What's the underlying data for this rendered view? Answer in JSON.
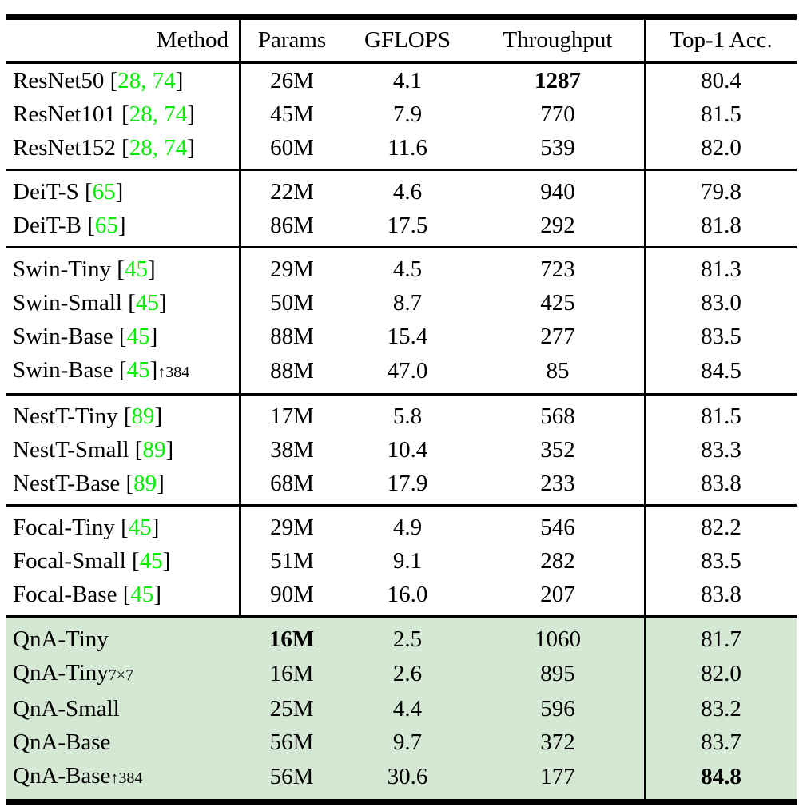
{
  "table": {
    "headers": [
      "Method",
      "Params",
      "GFLOPS",
      "Throughput",
      "Top-1 Acc."
    ],
    "colors": {
      "citation": "#00ee00",
      "highlight_row_bg": "#d5e8d4",
      "rule": "#000000"
    },
    "groups": [
      {
        "highlight": false,
        "rows": [
          {
            "method": "ResNet50",
            "citation": "28, 74",
            "subscript": "",
            "params": "26M",
            "gflops": "4.1",
            "throughput": "1287",
            "top1": "80.4",
            "bold": [
              "throughput"
            ]
          },
          {
            "method": "ResNet101",
            "citation": "28, 74",
            "subscript": "",
            "params": "45M",
            "gflops": "7.9",
            "throughput": "770",
            "top1": "81.5",
            "bold": []
          },
          {
            "method": "ResNet152",
            "citation": "28, 74",
            "subscript": "",
            "params": "60M",
            "gflops": "11.6",
            "throughput": "539",
            "top1": "82.0",
            "bold": []
          }
        ]
      },
      {
        "highlight": false,
        "rows": [
          {
            "method": "DeiT-S",
            "citation": "65",
            "subscript": "",
            "params": "22M",
            "gflops": "4.6",
            "throughput": "940",
            "top1": "79.8",
            "bold": []
          },
          {
            "method": "DeiT-B",
            "citation": "65",
            "subscript": "",
            "params": "86M",
            "gflops": "17.5",
            "throughput": "292",
            "top1": "81.8",
            "bold": []
          }
        ]
      },
      {
        "highlight": false,
        "rows": [
          {
            "method": "Swin-Tiny",
            "citation": "45",
            "subscript": "",
            "params": "29M",
            "gflops": "4.5",
            "throughput": "723",
            "top1": "81.3",
            "bold": []
          },
          {
            "method": "Swin-Small",
            "citation": "45",
            "subscript": "",
            "params": "50M",
            "gflops": "8.7",
            "throughput": "425",
            "top1": "83.0",
            "bold": []
          },
          {
            "method": "Swin-Base",
            "citation": "45",
            "subscript": "",
            "params": "88M",
            "gflops": "15.4",
            "throughput": "277",
            "top1": "83.5",
            "bold": []
          },
          {
            "method": "Swin-Base",
            "citation": "45",
            "subscript": "↑384",
            "params": "88M",
            "gflops": "47.0",
            "throughput": "85",
            "top1": "84.5",
            "bold": []
          }
        ]
      },
      {
        "highlight": false,
        "rows": [
          {
            "method": "NestT-Tiny",
            "citation": "89",
            "subscript": "",
            "params": "17M",
            "gflops": "5.8",
            "throughput": "568",
            "top1": "81.5",
            "bold": []
          },
          {
            "method": "NestT-Small",
            "citation": "89",
            "subscript": "",
            "params": "38M",
            "gflops": "10.4",
            "throughput": "352",
            "top1": "83.3",
            "bold": []
          },
          {
            "method": "NestT-Base",
            "citation": "89",
            "subscript": "",
            "params": "68M",
            "gflops": "17.9",
            "throughput": "233",
            "top1": "83.8",
            "bold": []
          }
        ]
      },
      {
        "highlight": false,
        "rows": [
          {
            "method": "Focal-Tiny",
            "citation": "45",
            "subscript": "",
            "params": "29M",
            "gflops": "4.9",
            "throughput": "546",
            "top1": "82.2",
            "bold": []
          },
          {
            "method": "Focal-Small",
            "citation": "45",
            "subscript": "",
            "params": "51M",
            "gflops": "9.1",
            "throughput": "282",
            "top1": "83.5",
            "bold": []
          },
          {
            "method": "Focal-Base",
            "citation": "45",
            "subscript": "",
            "params": "90M",
            "gflops": "16.0",
            "throughput": "207",
            "top1": "83.8",
            "bold": []
          }
        ]
      },
      {
        "highlight": true,
        "rows": [
          {
            "method": "QnA-Tiny",
            "citation": "",
            "subscript": "",
            "params": "16M",
            "gflops": "2.5",
            "throughput": "1060",
            "top1": "81.7",
            "bold": [
              "params"
            ]
          },
          {
            "method": "QnA-Tiny",
            "citation": "",
            "subscript": "7×7",
            "params": "16M",
            "gflops": "2.6",
            "throughput": "895",
            "top1": "82.0",
            "bold": []
          },
          {
            "method": "QnA-Small",
            "citation": "",
            "subscript": "",
            "params": "25M",
            "gflops": "4.4",
            "throughput": "596",
            "top1": "83.2",
            "bold": []
          },
          {
            "method": "QnA-Base",
            "citation": "",
            "subscript": "",
            "params": "56M",
            "gflops": "9.7",
            "throughput": "372",
            "top1": "83.7",
            "bold": []
          },
          {
            "method": "QnA-Base",
            "citation": "",
            "subscript": "↑384",
            "params": "56M",
            "gflops": "30.6",
            "throughput": "177",
            "top1": "84.8",
            "bold": [
              "top1"
            ]
          }
        ]
      }
    ]
  }
}
